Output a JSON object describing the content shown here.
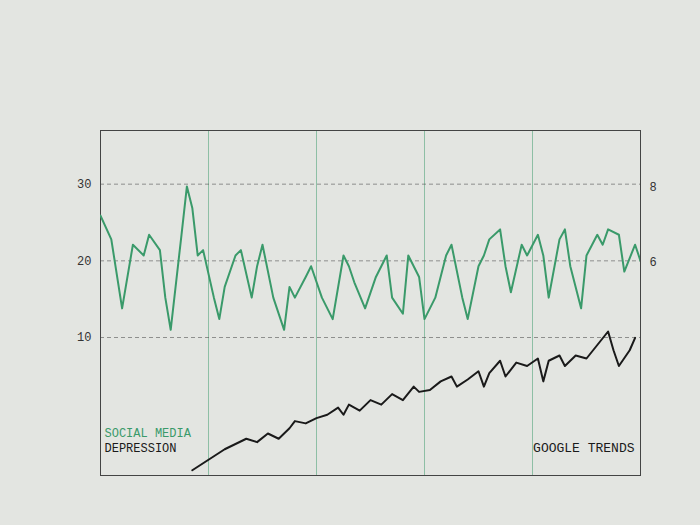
{
  "chart_data": {
    "type": "line",
    "annotation": "GOOGLE TRENDS",
    "xlim": [
      0,
      100
    ],
    "ylim": [
      -8,
      37
    ],
    "yticks": [
      10,
      20,
      30
    ],
    "y2lim": [
      0.3,
      9.5
    ],
    "y2ticks": [
      6,
      8
    ],
    "grid": true,
    "series": [
      {
        "name": "SOCIAL MEDIA",
        "color": "#3a9a6a",
        "x": [
          0,
          2,
          4,
          6,
          8,
          9,
          11,
          12,
          13,
          15,
          16,
          17,
          18,
          19,
          21,
          22,
          23,
          25,
          26,
          28,
          29,
          30,
          32,
          34,
          35,
          36,
          38,
          39,
          41,
          43,
          45,
          46,
          47,
          49,
          51,
          53,
          54,
          56,
          57,
          59,
          60,
          62,
          64,
          65,
          67,
          68,
          70,
          71,
          72,
          74,
          75,
          76,
          78,
          79,
          81,
          82,
          83,
          85,
          86,
          87,
          89,
          90,
          92,
          93,
          94,
          96,
          97,
          99,
          100
        ],
        "values": [
          25.9,
          22.8,
          13.8,
          22.1,
          20.7,
          23.4,
          21.4,
          15.2,
          11.0,
          23.4,
          29.7,
          26.9,
          20.7,
          21.4,
          15.2,
          12.4,
          16.6,
          20.7,
          21.4,
          15.2,
          19.3,
          22.1,
          15.2,
          11.0,
          16.6,
          15.2,
          17.9,
          19.3,
          15.2,
          12.4,
          20.7,
          19.3,
          17.2,
          13.8,
          17.9,
          20.7,
          15.2,
          13.1,
          20.7,
          17.9,
          12.4,
          15.2,
          20.7,
          22.1,
          15.2,
          12.4,
          19.3,
          20.7,
          22.8,
          24.1,
          19.3,
          15.9,
          22.1,
          20.7,
          23.4,
          20.7,
          15.2,
          22.8,
          24.1,
          19.3,
          13.8,
          20.7,
          23.4,
          22.1,
          24.1,
          23.4,
          18.6,
          22.1,
          20.0
        ]
      },
      {
        "name": "DEPRESSION",
        "color": "#1a1a1a",
        "axis": "y2",
        "x": [
          17,
          20,
          23,
          25,
          27,
          29,
          31,
          33,
          35,
          36,
          38,
          40,
          42,
          44,
          45,
          46,
          48,
          50,
          52,
          54,
          56,
          58,
          59,
          61,
          63,
          65,
          66,
          68,
          70,
          71,
          72,
          74,
          75,
          77,
          79,
          81,
          82,
          83,
          85,
          86,
          88,
          90,
          92,
          94,
          95,
          96,
          98,
          99
        ],
        "values": [
          0.44,
          0.72,
          1.0,
          1.14,
          1.28,
          1.19,
          1.42,
          1.28,
          1.56,
          1.75,
          1.69,
          1.83,
          1.92,
          2.11,
          1.92,
          2.19,
          2.03,
          2.31,
          2.19,
          2.47,
          2.31,
          2.67,
          2.53,
          2.58,
          2.81,
          2.94,
          2.67,
          2.86,
          3.08,
          2.67,
          3.03,
          3.36,
          2.94,
          3.31,
          3.22,
          3.42,
          2.81,
          3.36,
          3.5,
          3.22,
          3.5,
          3.42,
          3.78,
          4.14,
          3.64,
          3.22,
          3.64,
          3.97
        ]
      }
    ]
  }
}
